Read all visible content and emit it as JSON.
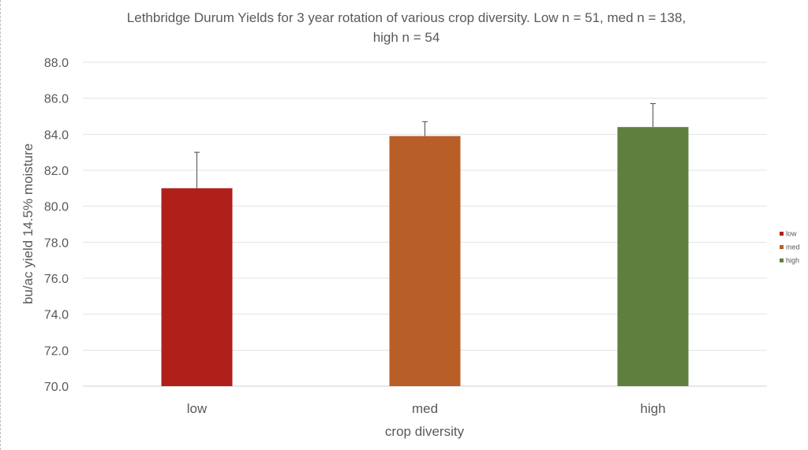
{
  "chart_data": {
    "type": "bar",
    "title_lines": [
      "Lethbridge Durum Yields for 3 year rotation of various crop diversity. Low n = 51, med n = 138,",
      "high n = 54"
    ],
    "xlabel": "crop diversity",
    "ylabel": "bu/ac yield 14.5% moisture",
    "categories": [
      "low",
      "med",
      "high"
    ],
    "values": [
      81.0,
      83.9,
      84.4
    ],
    "error_plus": [
      2.0,
      0.8,
      1.3
    ],
    "ylim": [
      70.0,
      88.0
    ],
    "ytick_step": 2.0,
    "yticks": [
      "70.0",
      "72.0",
      "74.0",
      "76.0",
      "78.0",
      "80.0",
      "82.0",
      "84.0",
      "86.0",
      "88.0"
    ],
    "grid": true,
    "legend": {
      "position": "right",
      "entries": [
        "low",
        "med",
        "high"
      ]
    },
    "colors": [
      "#b0201b",
      "#b85f28",
      "#5f803d"
    ]
  }
}
